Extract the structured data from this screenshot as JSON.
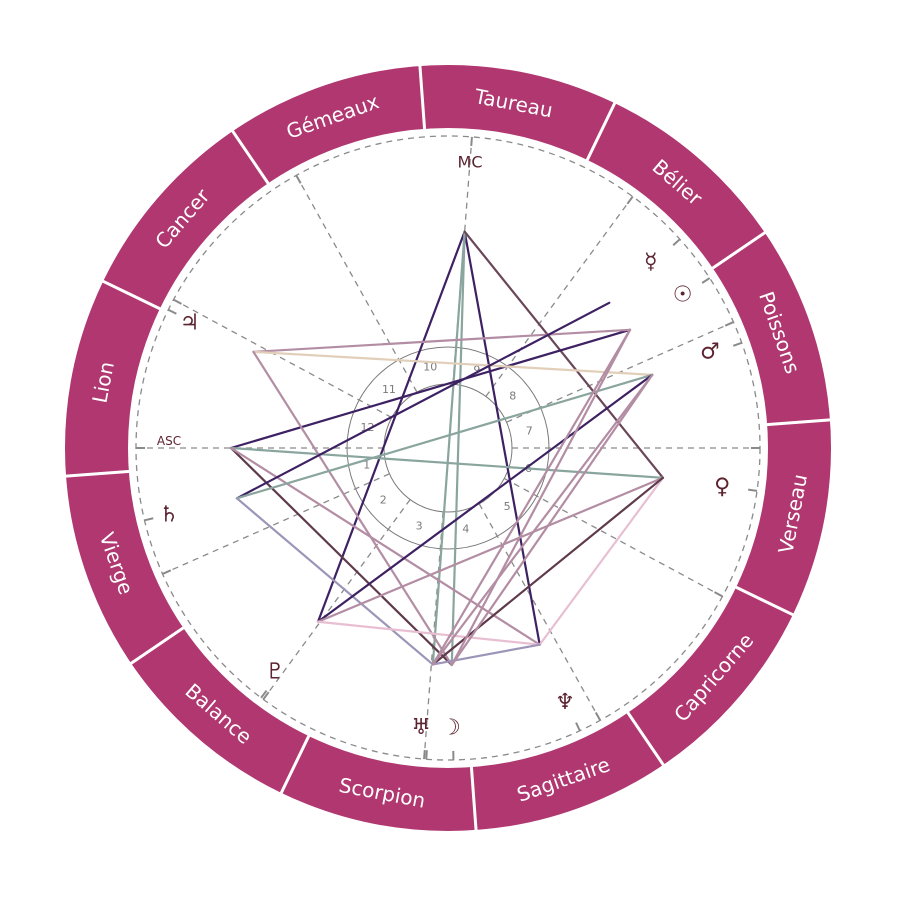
{
  "signs": [
    {
      "name": "Taureau",
      "angle": 10.8
    },
    {
      "name": "Bélier",
      "angle": 40.8
    },
    {
      "name": "Poissons",
      "angle": 70.8
    },
    {
      "name": "Verseau",
      "angle": 100.8
    },
    {
      "name": "Capricorne",
      "angle": 130.8
    },
    {
      "name": "Sagittaire",
      "angle": 160.8
    },
    {
      "name": "Scorpion",
      "angle": 190.8
    },
    {
      "name": "Balance",
      "angle": 220.8
    },
    {
      "name": "Vierge",
      "angle": 250.8
    },
    {
      "name": "Lion",
      "angle": 280.8
    },
    {
      "name": "Cancer",
      "angle": 310.8
    },
    {
      "name": "Gémeaux",
      "angle": 340.8
    }
  ],
  "sign_boundaries": [
    25.8,
    55.8,
    85.8,
    115.8,
    145.8,
    175.8,
    205.8,
    235.8,
    265.8,
    295.8,
    325.8,
    355.8
  ],
  "angles": {
    "mc": {
      "label": "MC",
      "angle": 4.4
    },
    "asc": {
      "label": "ASC",
      "angle": 270
    }
  },
  "houses": [
    {
      "number": "1",
      "cusp": 270
    },
    {
      "number": "2",
      "cusp": 246.2
    },
    {
      "number": "3",
      "cusp": 216.3
    },
    {
      "number": "4",
      "cusp": 184.4
    },
    {
      "number": "5",
      "cusp": 150.8
    },
    {
      "number": "6",
      "cusp": 118.4
    },
    {
      "number": "7",
      "cusp": 90
    },
    {
      "number": "8",
      "cusp": 66.2
    },
    {
      "number": "9",
      "cusp": 36.3
    },
    {
      "number": "10",
      "cusp": 4.4
    },
    {
      "number": "11",
      "cusp": 330.9
    },
    {
      "number": "12",
      "cusp": 298.4
    }
  ],
  "planets": [
    {
      "id": "mercury",
      "symbol": "☿",
      "angle": 48,
      "glyph_angle": 47.5,
      "glyph_r": 275
    },
    {
      "id": "sun",
      "symbol": "☉",
      "angle": 57,
      "glyph_angle": 56.9,
      "glyph_r": 280
    },
    {
      "id": "mars",
      "symbol": "♂",
      "angle": 70.3,
      "glyph_angle": 69.9,
      "glyph_r": 279
    },
    {
      "id": "venus",
      "symbol": "♀",
      "angle": 97.9,
      "glyph_angle": 98.1,
      "glyph_r": 277
    },
    {
      "id": "neptune",
      "symbol": "♆",
      "angle": 155,
      "glyph_angle": 155.3,
      "glyph_r": 280
    },
    {
      "id": "moon",
      "symbol": "☽",
      "angle": 179,
      "glyph_angle": 179.4,
      "glyph_r": 280
    },
    {
      "id": "uranus",
      "symbol": "♅",
      "angle": 184,
      "glyph_angle": 185.5,
      "glyph_r": 281
    },
    {
      "id": "pluto",
      "symbol": "♇",
      "angle": 216.8,
      "glyph_angle": 217.7,
      "glyph_r": 283
    },
    {
      "id": "saturn",
      "symbol": "♄",
      "angle": 256.6,
      "glyph_angle": 256.5,
      "glyph_r": 287
    },
    {
      "id": "jupiter",
      "symbol": "♃",
      "angle": 296.3,
      "glyph_angle": 295.8,
      "glyph_r": 287
    }
  ],
  "aspects": [
    {
      "from": "mc",
      "to": "pluto",
      "color": "dark_purple"
    },
    {
      "from": "mc",
      "to": "neptune",
      "color": "dark_purple"
    },
    {
      "from": "mc",
      "to": "uranus",
      "color": "teal"
    },
    {
      "from": "mc",
      "to": "moon",
      "color": "teal"
    },
    {
      "from": "mc",
      "to": "venus",
      "color": "brown_mauve"
    },
    {
      "from": "asc",
      "to": "sun",
      "color": "dark_purple"
    },
    {
      "from": "asc",
      "to": "venus",
      "color": "teal"
    },
    {
      "from": "asc",
      "to": "moon",
      "color": "dark_brown"
    },
    {
      "from": "asc",
      "to": "neptune",
      "color": "mauve"
    },
    {
      "from": "jupiter",
      "to": "sun",
      "color": "mauve"
    },
    {
      "from": "jupiter",
      "to": "mars",
      "color": "beige"
    },
    {
      "from": "jupiter",
      "to": "moon",
      "color": "mauve"
    },
    {
      "from": "saturn",
      "to": "mercury",
      "color": "dark_purple"
    },
    {
      "from": "saturn",
      "to": "mars",
      "color": "teal"
    },
    {
      "from": "saturn",
      "to": "uranus",
      "color": "lavender"
    },
    {
      "from": "pluto",
      "to": "mars",
      "color": "dark_purple"
    },
    {
      "from": "pluto",
      "to": "venus",
      "color": "mauve"
    },
    {
      "from": "pluto",
      "to": "neptune",
      "color": "light_pink"
    },
    {
      "from": "venus",
      "to": "neptune",
      "color": "light_pink"
    },
    {
      "from": "venus",
      "to": "uranus",
      "color": "dark_brown"
    },
    {
      "from": "uranus",
      "to": "neptune",
      "color": "lavender"
    },
    {
      "from": "sun",
      "to": "uranus",
      "color": "mauve"
    },
    {
      "from": "sun",
      "to": "moon",
      "color": "mauve"
    },
    {
      "from": "mars",
      "to": "uranus",
      "color": "mauve"
    },
    {
      "from": "mars",
      "to": "moon",
      "color": "mauve"
    }
  ],
  "colors": {
    "ring": "#b0376f",
    "glyph": "#5c2430",
    "dashed": "#8a8a8a",
    "house_circle": "#7a7a7a",
    "dark_purple": "#3d2163",
    "teal": "#8aa59e",
    "mauve": "#b38da3",
    "dark_brown": "#5e3a4b",
    "brown_mauve": "#6a4658",
    "beige": "#e2cfb9",
    "lavender": "#9c95b8",
    "light_pink": "#e8bfd2"
  }
}
